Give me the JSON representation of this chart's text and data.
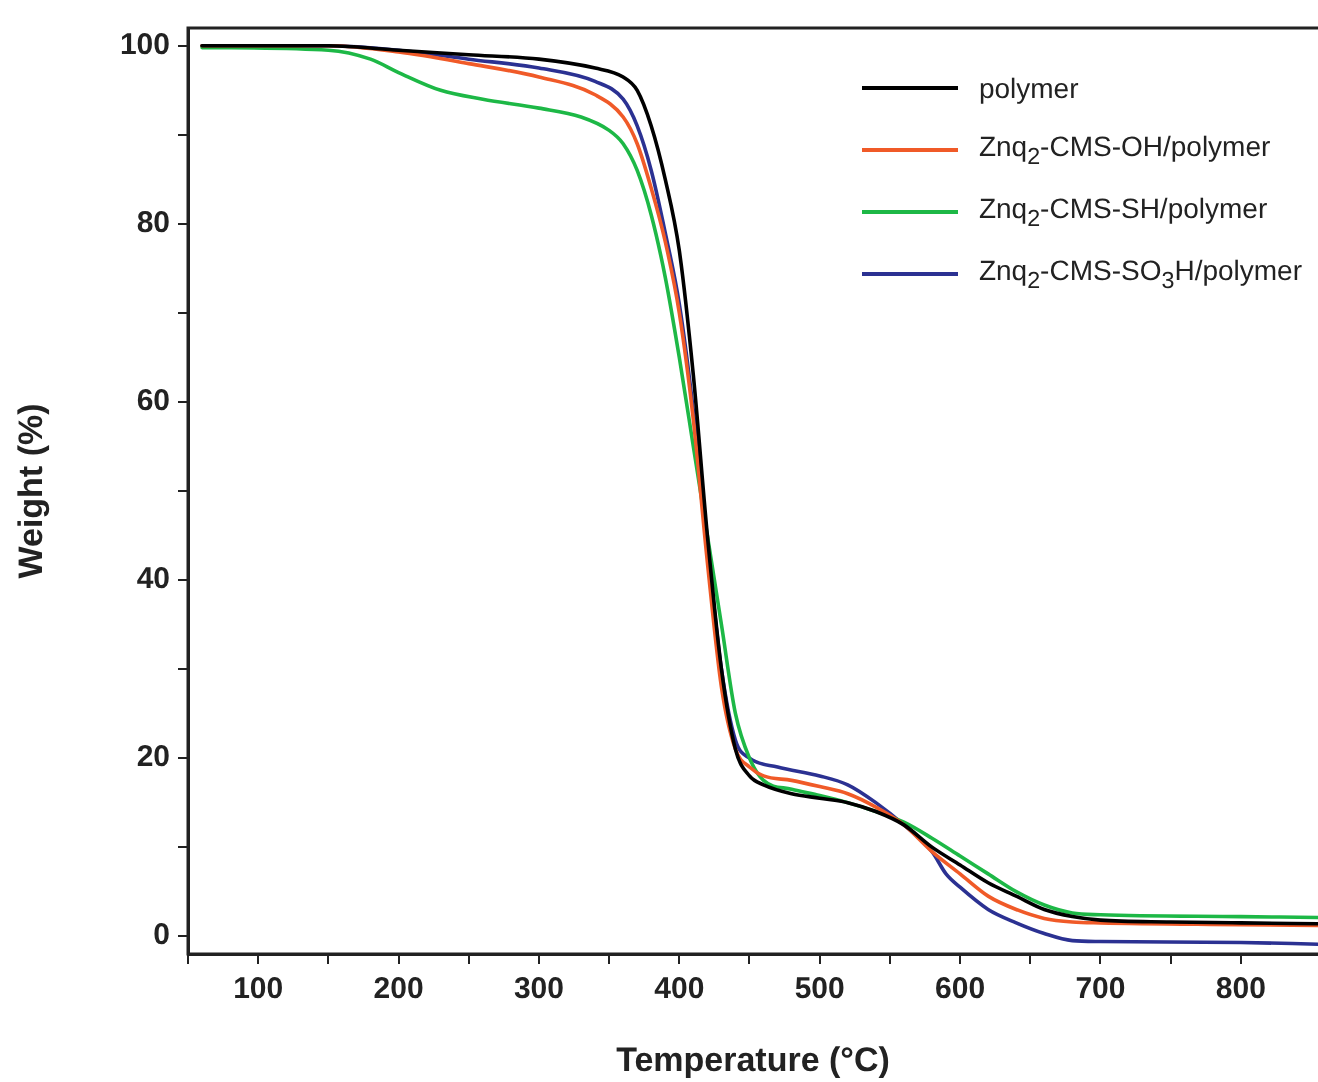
{
  "chart_data": {
    "type": "line",
    "xlabel": "Temperature (°C)",
    "ylabel": "Weight (%)",
    "xlim": [
      50,
      855
    ],
    "ylim": [
      -2,
      102
    ],
    "xticks": [
      {
        "value": 50,
        "label": null
      },
      100,
      {
        "value": 150,
        "label": null
      },
      200,
      {
        "value": 250,
        "label": null
      },
      300,
      {
        "value": 350,
        "label": null
      },
      400,
      {
        "value": 450,
        "label": null
      },
      500,
      {
        "value": 550,
        "label": null
      },
      600,
      {
        "value": 650,
        "label": null
      },
      700,
      {
        "value": 750,
        "label": null
      },
      800
    ],
    "yticks": [
      0,
      {
        "value": 10,
        "label": null
      },
      20,
      {
        "value": 30,
        "label": null
      },
      40,
      {
        "value": 50,
        "label": null
      },
      60,
      {
        "value": 70,
        "label": null
      },
      80,
      {
        "value": 90,
        "label": null
      },
      100
    ],
    "grid": false,
    "legend": "top right",
    "marker": "none",
    "line_style": "solid",
    "series": [
      {
        "name": "polymer",
        "color": "#000000",
        "x": [
          60,
          150,
          200,
          250,
          300,
          340,
          360,
          370,
          380,
          390,
          400,
          410,
          420,
          430,
          440,
          450,
          460,
          480,
          500,
          520,
          540,
          560,
          580,
          600,
          620,
          640,
          660,
          680,
          700,
          750,
          800,
          855
        ],
        "values": [
          100,
          100,
          99.5,
          99,
          98.5,
          97.5,
          96.5,
          95,
          91,
          85,
          77,
          63,
          45,
          30,
          21,
          18,
          17,
          16,
          15.5,
          15,
          14,
          12.5,
          10,
          8,
          6,
          4.5,
          3,
          2.2,
          1.8,
          1.6,
          1.5,
          1.4
        ]
      },
      {
        "name": "Znq$_{2}$-CMS-OH/polymer",
        "color": "#f05a28",
        "x": [
          60,
          150,
          200,
          250,
          300,
          340,
          360,
          370,
          380,
          390,
          400,
          410,
          420,
          430,
          440,
          450,
          460,
          480,
          500,
          520,
          540,
          560,
          580,
          600,
          620,
          640,
          660,
          680,
          700,
          800,
          855
        ],
        "values": [
          100,
          100,
          99.3,
          98,
          96.5,
          94.5,
          92,
          89,
          84,
          78,
          70,
          58,
          42,
          28,
          21,
          19,
          18,
          17.5,
          16.8,
          16,
          14.5,
          12.5,
          9.5,
          7,
          4.5,
          3,
          2,
          1.6,
          1.5,
          1.3,
          1.2
        ]
      },
      {
        "name": "Znq$_{2}$-CMS-SH/polymer",
        "color": "#1db846",
        "x": [
          60,
          150,
          180,
          200,
          230,
          260,
          300,
          330,
          350,
          360,
          370,
          380,
          390,
          400,
          410,
          420,
          430,
          440,
          450,
          460,
          480,
          500,
          520,
          540,
          560,
          580,
          600,
          620,
          640,
          660,
          680,
          700,
          800,
          855
        ],
        "values": [
          99.8,
          99.5,
          98.5,
          97,
          95,
          94,
          93,
          92,
          90.5,
          89,
          86,
          81,
          74,
          65,
          55,
          45,
          35,
          25,
          20,
          17.5,
          16.5,
          15.8,
          15,
          14,
          12.8,
          11,
          9,
          7,
          5,
          3.5,
          2.6,
          2.4,
          2.2,
          2.1
        ]
      },
      {
        "name": "Znq$_{2}$-CMS-SO$_{3}$H/polymer",
        "color": "#2b3192",
        "x": [
          60,
          150,
          200,
          250,
          300,
          340,
          360,
          370,
          380,
          390,
          400,
          410,
          420,
          430,
          440,
          450,
          470,
          500,
          520,
          540,
          560,
          580,
          590,
          600,
          620,
          640,
          660,
          680,
          700,
          800,
          855
        ],
        "values": [
          100,
          100,
          99.5,
          98.5,
          97.5,
          96,
          94,
          91,
          86,
          79,
          71,
          59,
          44,
          30,
          22,
          20,
          19,
          18,
          17,
          15,
          12.5,
          9.5,
          7,
          5.5,
          3,
          1.5,
          0.3,
          -0.5,
          -0.6,
          -0.7,
          -0.9
        ]
      }
    ]
  }
}
